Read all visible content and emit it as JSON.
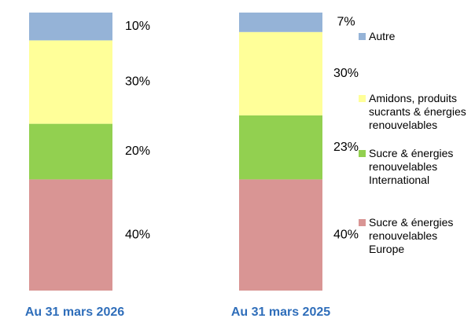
{
  "chart_data": {
    "type": "stacked_bar_100",
    "categories": [
      "Au 31 mars 2026",
      "Au 31 mars 2025"
    ],
    "series": [
      {
        "name": "Sucre & énergies renouvelables Europe",
        "color": "#d99594",
        "values": [
          40,
          40
        ],
        "value_labels": [
          "40%",
          "40%"
        ]
      },
      {
        "name": "Sucre & énergies renouvelables International",
        "color": "#92d050",
        "values": [
          20,
          23
        ],
        "value_labels": [
          "20%",
          "23%"
        ]
      },
      {
        "name": "Amidons, produits sucrants & énergies renouvelables",
        "color": "#ffff99",
        "values": [
          30,
          30
        ],
        "value_labels": [
          "30%",
          "30%"
        ]
      },
      {
        "name": "Autre",
        "color": "#95b3d7",
        "values": [
          10,
          7
        ],
        "value_labels": [
          "10%",
          "7%"
        ]
      }
    ],
    "legend": "right"
  }
}
